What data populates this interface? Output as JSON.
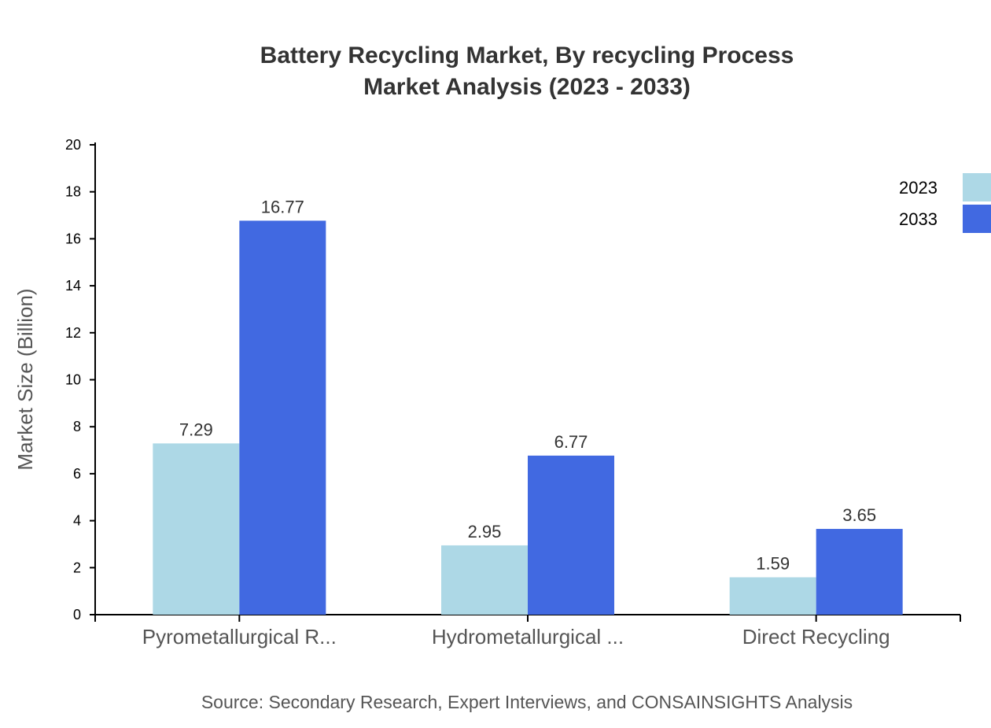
{
  "chart_data": {
    "type": "bar",
    "title": "Battery Recycling Market, By recycling Process",
    "subtitle": "Market Analysis (2023 - 2033)",
    "xlabel": "",
    "ylabel": "Market Size (Billion)",
    "ylim": [
      0,
      20
    ],
    "yticks": [
      0,
      2,
      4,
      6,
      8,
      10,
      12,
      14,
      16,
      18,
      20
    ],
    "categories": [
      "Pyrometallurgical R...",
      "Hydrometallurgical ...",
      "Direct Recycling"
    ],
    "series": [
      {
        "name": "2023",
        "color": "#add8e6",
        "values": [
          7.29,
          2.95,
          1.59
        ],
        "labels": [
          "7.29",
          "2.95",
          "1.59"
        ]
      },
      {
        "name": "2033",
        "color": "#4169e1",
        "values": [
          16.77,
          6.77,
          3.65
        ],
        "labels": [
          "16.77",
          "6.77",
          "3.65"
        ]
      }
    ],
    "legend_position": "top-right",
    "grid": false,
    "source": "Source: Secondary Research, Expert Interviews, and CONSAINSIGHTS Analysis"
  }
}
